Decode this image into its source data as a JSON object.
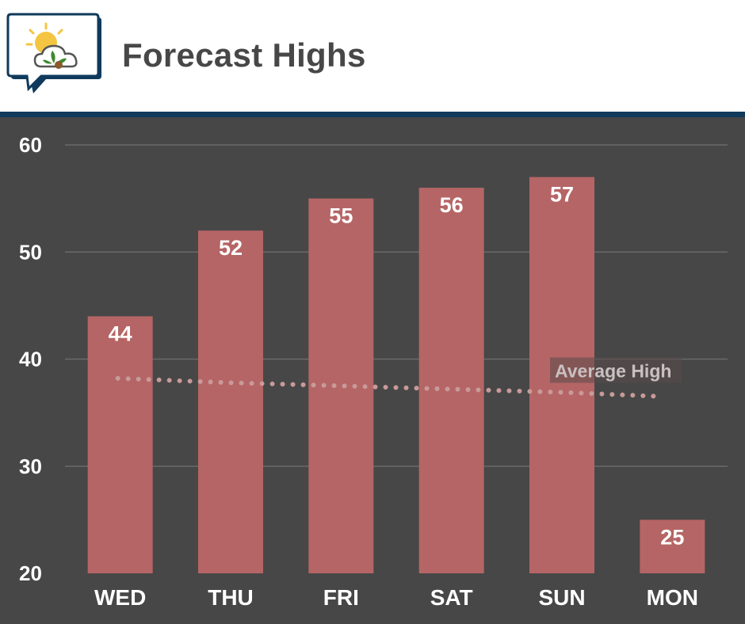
{
  "header": {
    "title": "Forecast Highs",
    "logo_icon": "weather-cloud-sun-leaf-icon"
  },
  "colors": {
    "background": "#474747",
    "bar": "#b56565",
    "header_rule": "#0f3a5c",
    "gridline": "#6a6a6a",
    "average_line": "#c99a9a"
  },
  "chart_data": {
    "type": "bar",
    "categories": [
      "WED",
      "THU",
      "FRI",
      "SAT",
      "SUN",
      "MON"
    ],
    "values": [
      44,
      52,
      55,
      56,
      57,
      25
    ],
    "ylim": [
      20,
      60
    ],
    "yticks": [
      20,
      30,
      40,
      50,
      60
    ],
    "grid": true,
    "average_line": {
      "label": "Average High",
      "style": "dotted",
      "values": [
        38.2,
        37.8,
        37.5,
        37.2,
        36.9,
        36.5
      ]
    }
  }
}
